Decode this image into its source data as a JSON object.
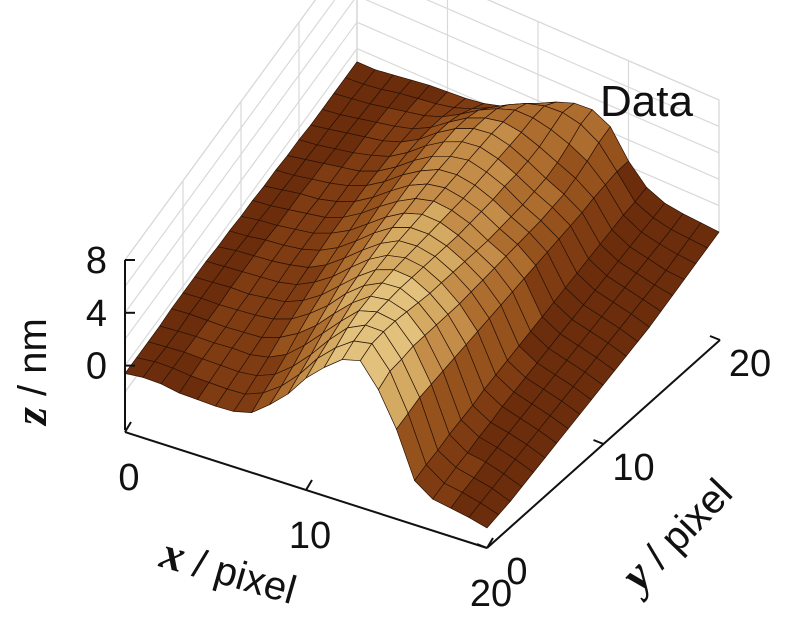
{
  "chart_data": {
    "type": "surface3d",
    "title": "Data",
    "xlabel": {
      "var": "x",
      "unit": " / pixel"
    },
    "ylabel": {
      "var": "y",
      "unit": " / pixel"
    },
    "zlabel": {
      "var": "z",
      "unit": " / nm"
    },
    "xlim": [
      0,
      20
    ],
    "ylim": [
      0,
      20
    ],
    "zlim": [
      -2,
      8
    ],
    "x_ticks": [
      0,
      10,
      20
    ],
    "y_ticks": [
      0,
      10,
      20
    ],
    "z_ticks": [
      0,
      4,
      8
    ],
    "grid": true,
    "colormap": [
      "#6b2d0c",
      "#7f3c12",
      "#95521d",
      "#ad6d2f",
      "#c38c48",
      "#d4a962",
      "#e1c17c"
    ],
    "z": [
      [
        -0.6,
        -0.3,
        -0.2,
        -0.3,
        -0.2,
        -0.1,
        0.1,
        0.6,
        1.8,
        3.2,
        5.0,
        6.4,
        7.6,
        8.1,
        6.5,
        4.1,
        0.8,
        0.0,
        -0.1,
        -0.2,
        -0.4
      ],
      [
        -0.6,
        -0.3,
        -0.2,
        -0.2,
        -0.1,
        0.0,
        0.2,
        0.9,
        2.0,
        3.5,
        5.3,
        6.7,
        7.8,
        8.2,
        6.7,
        4.1,
        0.8,
        0.0,
        -0.1,
        -0.3,
        -0.6
      ],
      [
        -0.6,
        -0.4,
        -0.2,
        -0.1,
        0.0,
        0.1,
        0.4,
        1.1,
        2.3,
        3.8,
        5.5,
        7.0,
        7.8,
        7.9,
        6.4,
        4.1,
        0.7,
        0.0,
        -0.2,
        -0.4,
        -0.8
      ],
      [
        -0.6,
        -0.4,
        -0.2,
        -0.1,
        0.1,
        0.2,
        0.6,
        1.4,
        2.7,
        4.2,
        5.7,
        7.1,
        7.6,
        7.5,
        6.2,
        3.9,
        0.7,
        -0.1,
        -0.2,
        -0.5,
        -0.9
      ],
      [
        -0.5,
        -0.3,
        -0.2,
        -0.1,
        0.1,
        0.3,
        0.9,
        1.8,
        3.0,
        4.5,
        5.9,
        7.0,
        7.3,
        7.0,
        5.8,
        3.7,
        0.6,
        -0.1,
        -0.3,
        -0.6,
        -1.0
      ],
      [
        -0.5,
        -0.3,
        -0.2,
        0.0,
        0.2,
        0.5,
        1.1,
        2.1,
        3.3,
        4.8,
        6.0,
        6.8,
        7.0,
        6.5,
        5.4,
        3.5,
        0.5,
        -0.2,
        -0.4,
        -0.7,
        -1.1
      ],
      [
        -0.5,
        -0.3,
        -0.1,
        0.0,
        0.3,
        0.6,
        1.3,
        2.3,
        3.6,
        4.9,
        6.0,
        6.6,
        6.6,
        6.0,
        5.0,
        3.3,
        0.5,
        -0.2,
        -0.5,
        -0.8,
        -1.2
      ],
      [
        -0.5,
        -0.3,
        -0.1,
        0.1,
        0.3,
        0.7,
        1.5,
        2.5,
        3.8,
        5.0,
        5.9,
        6.3,
        6.2,
        5.6,
        4.6,
        3.1,
        0.4,
        -0.3,
        -0.6,
        -0.9,
        -1.3
      ],
      [
        -0.6,
        -0.3,
        -0.1,
        0.1,
        0.4,
        0.8,
        1.6,
        2.7,
        3.9,
        5.0,
        5.8,
        6.0,
        5.8,
        5.2,
        4.3,
        2.9,
        0.3,
        -0.4,
        -0.7,
        -1.0,
        -1.4
      ],
      [
        -0.6,
        -0.4,
        -0.1,
        0.1,
        0.4,
        0.9,
        1.7,
        2.8,
        4.0,
        5.0,
        5.6,
        5.7,
        5.4,
        4.8,
        4.0,
        2.7,
        0.2,
        -0.5,
        -0.8,
        -1.1,
        -1.5
      ],
      [
        -0.7,
        -0.4,
        -0.2,
        0.1,
        0.4,
        1.0,
        1.8,
        2.9,
        4.0,
        4.9,
        5.4,
        5.4,
        5.0,
        4.4,
        3.7,
        2.5,
        0.1,
        -0.6,
        -0.9,
        -1.2,
        -1.6
      ],
      [
        -0.7,
        -0.5,
        -0.2,
        0.1,
        0.4,
        1.0,
        1.9,
        3.0,
        4.0,
        4.8,
        5.2,
        5.1,
        4.7,
        4.0,
        3.4,
        2.3,
        0.0,
        -0.7,
        -1.0,
        -1.3,
        -1.7
      ],
      [
        -0.8,
        -0.5,
        -0.2,
        0.0,
        0.4,
        1.0,
        1.9,
        3.0,
        4.0,
        4.7,
        5.0,
        4.8,
        4.4,
        3.7,
        3.1,
        2.1,
        -0.1,
        -0.8,
        -1.1,
        -1.4,
        -1.8
      ],
      [
        -0.8,
        -0.6,
        -0.3,
        0.0,
        0.4,
        1.0,
        1.9,
        3.0,
        3.9,
        4.6,
        4.8,
        4.6,
        4.1,
        3.4,
        2.8,
        1.9,
        -0.2,
        -0.9,
        -1.2,
        -1.5,
        -1.9
      ],
      [
        -0.9,
        -0.6,
        -0.3,
        0.0,
        0.3,
        0.9,
        1.8,
        2.9,
        3.8,
        4.4,
        4.7,
        4.4,
        3.9,
        3.1,
        2.5,
        1.7,
        -0.3,
        -1.0,
        -1.3,
        -1.6,
        -2.0
      ],
      [
        -0.9,
        -0.7,
        -0.4,
        -0.1,
        0.3,
        0.8,
        1.7,
        2.8,
        3.7,
        4.3,
        4.5,
        4.2,
        3.6,
        2.9,
        2.3,
        1.5,
        -0.4,
        -1.1,
        -1.4,
        -1.7,
        -2.0
      ],
      [
        -1.0,
        -0.7,
        -0.4,
        -0.1,
        0.2,
        0.7,
        1.5,
        2.6,
        3.5,
        4.1,
        4.3,
        4.0,
        3.4,
        2.7,
        2.1,
        1.3,
        -0.5,
        -1.2,
        -1.5,
        -1.8,
        -2.0
      ],
      [
        -1.0,
        -0.8,
        -0.5,
        -0.2,
        0.1,
        0.5,
        1.2,
        2.2,
        3.1,
        3.7,
        4.0,
        3.8,
        3.3,
        2.7,
        2.1,
        1.2,
        -0.6,
        -1.3,
        -1.6,
        -1.9,
        -2.0
      ],
      [
        -1.0,
        -0.8,
        -0.6,
        -0.3,
        0.0,
        0.3,
        0.8,
        1.6,
        2.5,
        3.2,
        3.7,
        3.7,
        3.4,
        2.9,
        2.2,
        1.0,
        -0.7,
        -1.4,
        -1.7,
        -1.9,
        -2.0
      ],
      [
        -1.0,
        -0.9,
        -0.7,
        -0.4,
        -0.2,
        0.0,
        0.3,
        0.8,
        1.5,
        2.3,
        3.0,
        3.4,
        3.5,
        3.2,
        2.4,
        0.8,
        -0.9,
        -1.5,
        -1.8,
        -1.9,
        -2.0
      ],
      [
        -1.0,
        -1.0,
        -0.8,
        -0.6,
        -0.4,
        -0.3,
        -0.2,
        0.0,
        0.4,
        1.0,
        1.8,
        2.5,
        3.0,
        3.1,
        2.4,
        0.4,
        -1.0,
        -1.6,
        -1.8,
        -1.9,
        -2.0
      ]
    ]
  }
}
